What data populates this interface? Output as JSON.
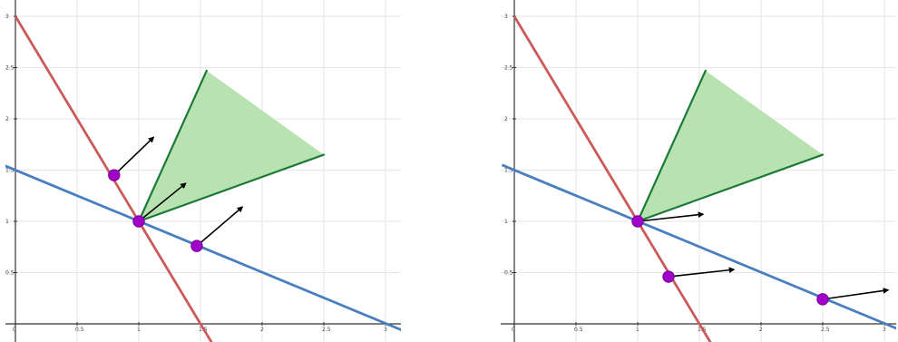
{
  "colors": {
    "red_line": "#cc5a5a",
    "blue_line": "#4a7fbf",
    "cone_fill": "#b9e2b1",
    "cone_edge": "#1b7a37",
    "point": "#a000c8",
    "point_stroke": "#7a0099",
    "arrow": "#000000",
    "axis": "#333333",
    "grid": "#e6e6e6"
  },
  "axes": {
    "x_ticks": [
      "0",
      "0.5",
      "1",
      "1.5",
      "2",
      "2.5",
      "3"
    ],
    "y_ticks": [
      "0.5",
      "1",
      "1.5",
      "2",
      "2.5",
      "3"
    ],
    "xlim": [
      0,
      3.15
    ],
    "ylim": [
      -0.1,
      3.2
    ]
  },
  "panels": [
    {
      "id": "left",
      "lines": [
        {
          "name": "red",
          "from": [
            0,
            3
          ],
          "to": [
            1.6,
            -0.2
          ]
        },
        {
          "name": "blue",
          "from": [
            -0.1,
            1.55
          ],
          "to": [
            3.15,
            -0.07
          ]
        }
      ],
      "cone": {
        "apex": [
          1,
          1
        ],
        "ends": [
          [
            1.55,
            2.47
          ],
          [
            2.5,
            1.65
          ]
        ]
      },
      "points": [
        {
          "at": [
            0.8,
            1.45
          ],
          "arrow_to": [
            1.12,
            1.82
          ]
        },
        {
          "at": [
            1,
            1
          ],
          "arrow_to": [
            1.38,
            1.37
          ]
        },
        {
          "at": [
            1.47,
            0.76
          ],
          "arrow_to": [
            1.84,
            1.14
          ]
        }
      ]
    },
    {
      "id": "right",
      "lines": [
        {
          "name": "red",
          "from": [
            0,
            3
          ],
          "to": [
            1.6,
            -0.2
          ]
        },
        {
          "name": "blue",
          "from": [
            -0.1,
            1.55
          ],
          "to": [
            3.15,
            -0.07
          ]
        }
      ],
      "cone": {
        "apex": [
          1,
          1
        ],
        "ends": [
          [
            1.55,
            2.47
          ],
          [
            2.5,
            1.65
          ]
        ]
      },
      "points": [
        {
          "at": [
            1,
            1
          ],
          "arrow_to": [
            1.53,
            1.07
          ]
        },
        {
          "at": [
            1.25,
            0.46
          ],
          "arrow_to": [
            1.78,
            0.53
          ]
        },
        {
          "at": [
            2.5,
            0.24
          ],
          "arrow_to": [
            3.03,
            0.33
          ]
        }
      ]
    }
  ]
}
